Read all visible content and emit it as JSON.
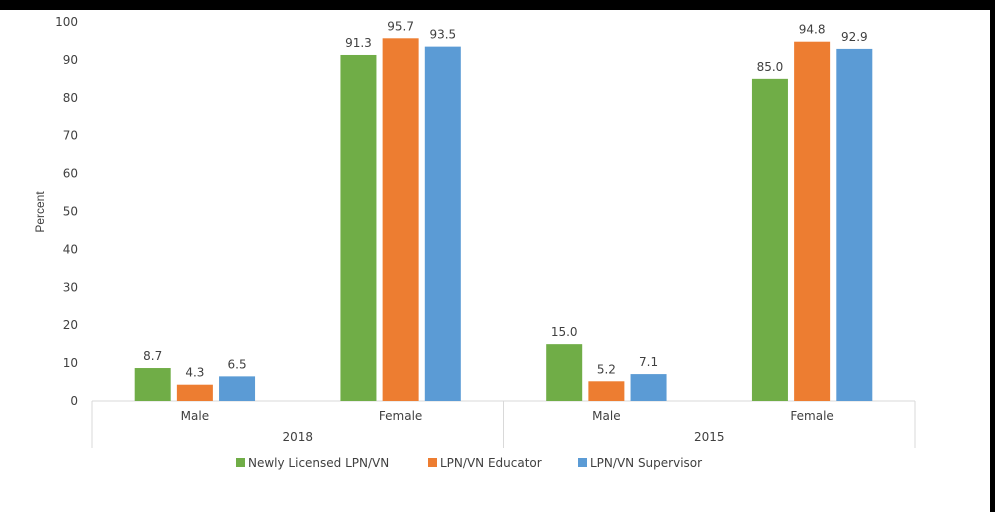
{
  "chart_data": {
    "type": "bar",
    "ylabel": "Percent",
    "ylim": [
      0,
      100
    ],
    "y_ticks": [
      0,
      10,
      20,
      30,
      40,
      50,
      60,
      70,
      80,
      90,
      100
    ],
    "groups": [
      {
        "label": "2018",
        "categories": [
          "Male",
          "Female"
        ]
      },
      {
        "label": "2015",
        "categories": [
          "Male",
          "Female"
        ]
      }
    ],
    "series": [
      {
        "name": "Newly Licensed LPN/VN",
        "color": "#70ad47",
        "values": [
          8.7,
          91.3,
          15.0,
          85.0
        ]
      },
      {
        "name": "LPN/VN Educator",
        "color": "#ed7d31",
        "values": [
          4.3,
          95.7,
          5.2,
          94.8
        ]
      },
      {
        "name": "LPN/VN Supervisor",
        "color": "#5b9bd5",
        "values": [
          6.5,
          93.5,
          7.1,
          92.9
        ]
      }
    ],
    "data_labels": true,
    "legend_position": "bottom",
    "grid": false
  }
}
